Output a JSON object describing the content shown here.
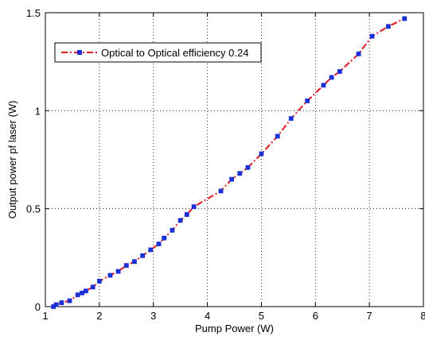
{
  "chart_data": {
    "type": "line",
    "title": "",
    "xlabel": "Pump Power (W)",
    "ylabel": "Output power pf laser (W)",
    "xlim": [
      1,
      8
    ],
    "ylim": [
      0,
      1.5
    ],
    "x_ticks": [
      1,
      2,
      3,
      4,
      5,
      6,
      7,
      8
    ],
    "y_ticks": [
      0,
      0.5,
      1,
      1.5
    ],
    "x_tick_labels": [
      "1",
      "2",
      "3",
      "4",
      "5",
      "6",
      "7",
      "8"
    ],
    "y_tick_labels": [
      "0",
      "0.5",
      "1",
      "1.5"
    ],
    "grid": true,
    "legend_position": "top-left",
    "series": [
      {
        "name": "Optical to Optical efficiency 0.24",
        "color": "#e8141c",
        "marker_color": "#1b2fd6",
        "line_style": "dash-dot",
        "marker": "square",
        "x": [
          1.15,
          1.2,
          1.3,
          1.45,
          1.6,
          1.68,
          1.75,
          1.88,
          2.0,
          2.2,
          2.35,
          2.5,
          2.65,
          2.8,
          2.95,
          3.1,
          3.2,
          3.35,
          3.5,
          3.62,
          3.75,
          4.25,
          4.45,
          4.6,
          4.75,
          5.0,
          5.3,
          5.55,
          5.85,
          6.15,
          6.3,
          6.45,
          6.8,
          7.05,
          7.35,
          7.65
        ],
        "y": [
          0.0,
          0.01,
          0.02,
          0.03,
          0.06,
          0.07,
          0.08,
          0.1,
          0.13,
          0.16,
          0.18,
          0.21,
          0.23,
          0.26,
          0.29,
          0.32,
          0.35,
          0.39,
          0.44,
          0.47,
          0.51,
          0.59,
          0.65,
          0.68,
          0.71,
          0.78,
          0.87,
          0.96,
          1.05,
          1.13,
          1.17,
          1.2,
          1.29,
          1.38,
          1.43,
          1.47
        ]
      }
    ]
  }
}
